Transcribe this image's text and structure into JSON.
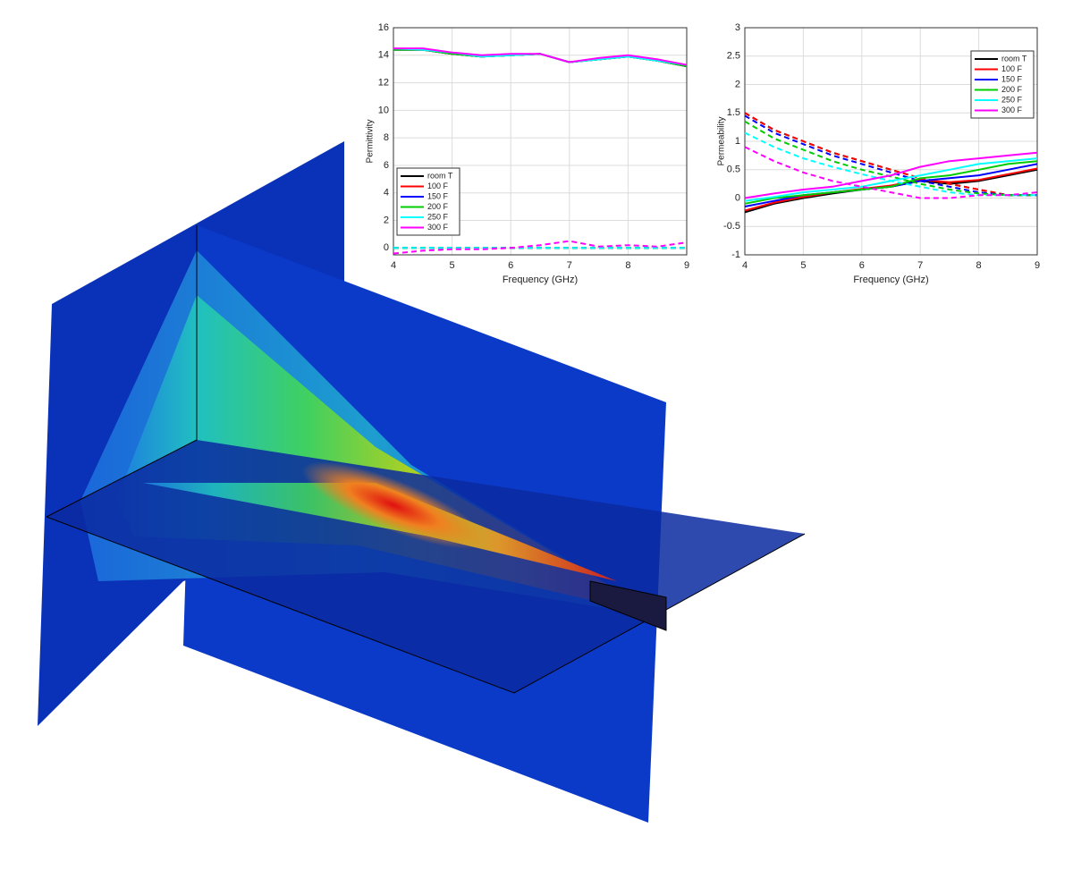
{
  "chart_data": [
    {
      "type": "line",
      "xlabel": "Frequency (GHz)",
      "ylabel": "Permittivity",
      "x": [
        4,
        4.5,
        5,
        5.5,
        6,
        6.5,
        7,
        7.5,
        8,
        8.5,
        9
      ],
      "xlim": [
        4,
        9
      ],
      "xticks": [
        4,
        5,
        6,
        7,
        8,
        9
      ],
      "ylim": [
        -0.5,
        16
      ],
      "yticks": [
        0,
        2,
        4,
        6,
        8,
        10,
        12,
        14,
        16
      ],
      "grid": true,
      "legend": "lower left",
      "series": [
        {
          "name": "room T",
          "color": "#000000",
          "values": [
            14.4,
            14.4,
            14.1,
            13.9,
            14.0,
            14.1,
            13.5,
            13.7,
            13.9,
            13.6,
            13.2
          ],
          "imag_values": [
            0.0,
            0.0,
            0.0,
            0.0,
            0.0,
            0.0,
            0.0,
            0.0,
            0.0,
            0.0,
            0.0
          ]
        },
        {
          "name": "100 F",
          "color": "#ff0000",
          "values": [
            14.4,
            14.4,
            14.1,
            13.9,
            14.0,
            14.1,
            13.5,
            13.7,
            13.9,
            13.6,
            13.2
          ],
          "imag_values": [
            0.0,
            0.0,
            0.0,
            0.0,
            0.0,
            0.0,
            0.0,
            0.0,
            0.0,
            0.0,
            0.0
          ]
        },
        {
          "name": "150 F",
          "color": "#0000ff",
          "values": [
            14.4,
            14.4,
            14.1,
            13.9,
            14.0,
            14.1,
            13.5,
            13.7,
            13.9,
            13.6,
            13.2
          ],
          "imag_values": [
            0.0,
            0.0,
            0.0,
            0.0,
            0.0,
            0.0,
            0.0,
            0.0,
            0.0,
            0.0,
            0.0
          ]
        },
        {
          "name": "200 F",
          "color": "#00cc00",
          "values": [
            14.4,
            14.4,
            14.1,
            13.9,
            14.0,
            14.1,
            13.5,
            13.7,
            13.9,
            13.6,
            13.2
          ],
          "imag_values": [
            0.0,
            0.0,
            0.0,
            0.0,
            0.0,
            0.0,
            0.0,
            0.0,
            0.0,
            0.0,
            0.0
          ]
        },
        {
          "name": "250 F",
          "color": "#00ffff",
          "values": [
            14.5,
            14.4,
            14.2,
            13.9,
            14.0,
            14.1,
            13.5,
            13.7,
            13.9,
            13.6,
            13.3
          ],
          "imag_values": [
            0.0,
            0.0,
            0.0,
            0.0,
            0.0,
            0.0,
            0.0,
            0.0,
            0.0,
            0.0,
            0.0
          ]
        },
        {
          "name": "300 F",
          "color": "#ff00ff",
          "values": [
            14.5,
            14.5,
            14.2,
            14.0,
            14.1,
            14.1,
            13.5,
            13.8,
            14.0,
            13.7,
            13.3
          ],
          "imag_values": [
            -0.4,
            -0.2,
            -0.1,
            -0.1,
            0.0,
            0.2,
            0.5,
            0.1,
            0.2,
            0.1,
            0.4
          ]
        }
      ]
    },
    {
      "type": "line",
      "xlabel": "Frequency (GHz)",
      "ylabel": "Permeability",
      "x": [
        4,
        4.5,
        5,
        5.5,
        6,
        6.5,
        7,
        7.5,
        8,
        8.5,
        9
      ],
      "xlim": [
        4,
        9
      ],
      "xticks": [
        4,
        5,
        6,
        7,
        8,
        9
      ],
      "ylim": [
        -1,
        3
      ],
      "yticks": [
        -1,
        -0.5,
        0,
        0.5,
        1,
        1.5,
        2,
        2.5,
        3
      ],
      "grid": true,
      "legend": "upper right",
      "series": [
        {
          "name": "room T",
          "color": "#000000",
          "values": [
            -0.25,
            -0.1,
            0.0,
            0.08,
            0.15,
            0.2,
            0.3,
            0.25,
            0.3,
            0.4,
            0.5
          ],
          "imag_values": [
            1.5,
            1.2,
            1.0,
            0.8,
            0.65,
            0.5,
            0.35,
            0.25,
            0.15,
            0.05,
            0.05
          ]
        },
        {
          "name": "100 F",
          "color": "#ff0000",
          "values": [
            -0.22,
            -0.08,
            0.02,
            0.1,
            0.16,
            0.22,
            0.32,
            0.28,
            0.32,
            0.42,
            0.52
          ],
          "imag_values": [
            1.5,
            1.2,
            1.0,
            0.8,
            0.65,
            0.5,
            0.35,
            0.25,
            0.15,
            0.05,
            0.05
          ]
        },
        {
          "name": "150 F",
          "color": "#0000ff",
          "values": [
            -0.15,
            -0.05,
            0.05,
            0.1,
            0.15,
            0.2,
            0.3,
            0.35,
            0.4,
            0.5,
            0.6
          ],
          "imag_values": [
            1.45,
            1.15,
            0.95,
            0.75,
            0.6,
            0.45,
            0.3,
            0.2,
            0.1,
            0.05,
            0.05
          ]
        },
        {
          "name": "200 F",
          "color": "#00cc00",
          "values": [
            -0.1,
            0.0,
            0.05,
            0.1,
            0.15,
            0.2,
            0.35,
            0.4,
            0.5,
            0.6,
            0.65
          ],
          "imag_values": [
            1.35,
            1.05,
            0.85,
            0.65,
            0.5,
            0.38,
            0.25,
            0.15,
            0.08,
            0.05,
            0.05
          ]
        },
        {
          "name": "250 F",
          "color": "#00ffff",
          "values": [
            -0.05,
            0.02,
            0.1,
            0.15,
            0.2,
            0.3,
            0.4,
            0.5,
            0.6,
            0.65,
            0.7
          ],
          "imag_values": [
            1.15,
            0.9,
            0.7,
            0.55,
            0.42,
            0.3,
            0.2,
            0.1,
            0.05,
            0.05,
            0.05
          ]
        },
        {
          "name": "300 F",
          "color": "#ff00ff",
          "values": [
            0.0,
            0.08,
            0.15,
            0.2,
            0.3,
            0.4,
            0.55,
            0.65,
            0.7,
            0.75,
            0.8
          ],
          "imag_values": [
            0.9,
            0.65,
            0.45,
            0.3,
            0.2,
            0.1,
            0.0,
            0.0,
            0.05,
            0.05,
            0.1
          ]
        }
      ]
    }
  ]
}
